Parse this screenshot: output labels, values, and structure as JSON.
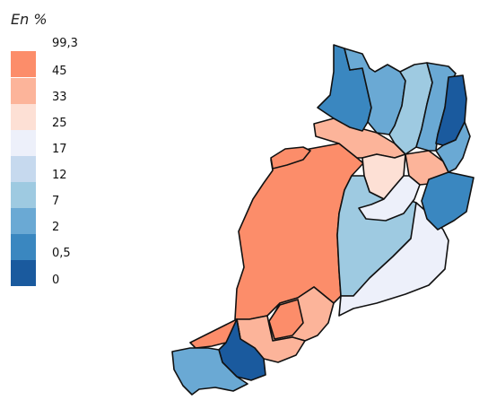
{
  "unit_label": "En %",
  "legend": {
    "boundaries": [
      "99,3",
      "45",
      "33",
      "25",
      "17",
      "12",
      "7",
      "2",
      "0,5",
      "0"
    ],
    "colors": [
      "#fc8d6a",
      "#fcb49a",
      "#fde0d5",
      "#edf0fa",
      "#c6d9ee",
      "#9ecae1",
      "#6aa9d4",
      "#3a87c0",
      "#1a5a9e"
    ]
  },
  "regions": [
    {
      "class": 1,
      "color": "#fc8d6a"
    },
    {
      "class": 2,
      "color": "#fcb49a"
    },
    {
      "class": 3,
      "color": "#fde0d5"
    },
    {
      "class": 4,
      "color": "#edf0fa"
    },
    {
      "class": 5,
      "color": "#c6d9ee"
    },
    {
      "class": 6,
      "color": "#9ecae1"
    },
    {
      "class": 7,
      "color": "#6aa9d4"
    },
    {
      "class": 8,
      "color": "#3a87c0"
    },
    {
      "class": 9,
      "color": "#1a5a9e"
    }
  ]
}
